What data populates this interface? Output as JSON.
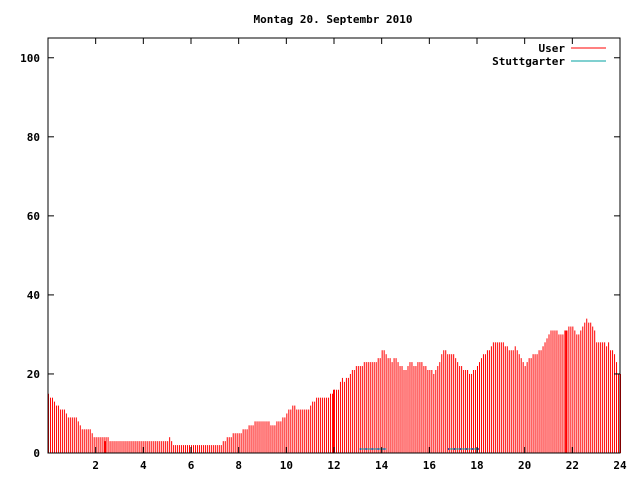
{
  "chart_data": {
    "type": "bar",
    "title": "Montag 20. Septembr 2010",
    "xlabel": "",
    "ylabel": "",
    "xlim": [
      0,
      24
    ],
    "ylim": [
      0,
      105
    ],
    "x_ticks": [
      "2",
      "4",
      "6",
      "8",
      "10",
      "12",
      "14",
      "16",
      "18",
      "20",
      "22",
      "24"
    ],
    "y_ticks": [
      "0",
      "20",
      "40",
      "60",
      "80",
      "100"
    ],
    "legend_position": "top-right",
    "grid": false,
    "bar_step_minutes": 5,
    "series": [
      {
        "name": "User",
        "color": "#ff0000",
        "keypoints": [
          [
            0.0,
            15
          ],
          [
            0.15,
            14
          ],
          [
            0.3,
            12
          ],
          [
            0.6,
            11
          ],
          [
            0.75,
            10
          ],
          [
            0.85,
            9
          ],
          [
            1.1,
            9
          ],
          [
            1.25,
            8
          ],
          [
            1.35,
            7
          ],
          [
            1.45,
            6
          ],
          [
            1.8,
            6
          ],
          [
            1.85,
            4
          ],
          [
            2.5,
            4
          ],
          [
            2.55,
            3
          ],
          [
            5.0,
            3
          ],
          [
            5.05,
            4
          ],
          [
            5.15,
            3
          ],
          [
            5.3,
            2
          ],
          [
            7.2,
            2
          ],
          [
            7.35,
            3
          ],
          [
            7.6,
            4
          ],
          [
            7.75,
            5
          ],
          [
            8.0,
            5
          ],
          [
            8.25,
            6
          ],
          [
            8.5,
            7
          ],
          [
            8.8,
            8
          ],
          [
            9.2,
            8
          ],
          [
            9.4,
            7
          ],
          [
            9.7,
            8
          ],
          [
            9.9,
            9
          ],
          [
            10.1,
            11
          ],
          [
            10.3,
            12
          ],
          [
            10.5,
            11
          ],
          [
            10.9,
            11
          ],
          [
            11.1,
            13
          ],
          [
            11.3,
            14
          ],
          [
            11.7,
            14
          ],
          [
            11.9,
            15
          ],
          [
            12.0,
            16
          ],
          [
            12.2,
            16
          ],
          [
            12.3,
            19
          ],
          [
            12.4,
            18
          ],
          [
            12.6,
            19
          ],
          [
            12.8,
            21
          ],
          [
            13.0,
            22
          ],
          [
            13.2,
            22
          ],
          [
            13.3,
            23
          ],
          [
            13.7,
            23
          ],
          [
            13.9,
            24
          ],
          [
            14.0,
            26
          ],
          [
            14.2,
            25
          ],
          [
            14.4,
            23
          ],
          [
            14.6,
            24
          ],
          [
            14.8,
            22
          ],
          [
            15.0,
            21
          ],
          [
            15.2,
            23
          ],
          [
            15.4,
            22
          ],
          [
            15.6,
            23
          ],
          [
            15.8,
            22
          ],
          [
            16.0,
            21
          ],
          [
            16.2,
            20
          ],
          [
            16.4,
            23
          ],
          [
            16.6,
            26
          ],
          [
            16.8,
            25
          ],
          [
            17.0,
            25
          ],
          [
            17.1,
            24
          ],
          [
            17.2,
            22
          ],
          [
            17.5,
            21
          ],
          [
            17.7,
            20
          ],
          [
            17.9,
            21
          ],
          [
            18.1,
            23
          ],
          [
            18.3,
            25
          ],
          [
            18.5,
            26
          ],
          [
            18.7,
            28
          ],
          [
            19.0,
            28
          ],
          [
            19.2,
            27
          ],
          [
            19.4,
            26
          ],
          [
            19.6,
            27
          ],
          [
            19.8,
            24
          ],
          [
            19.9,
            23
          ],
          [
            20.0,
            22
          ],
          [
            20.2,
            24
          ],
          [
            20.4,
            25
          ],
          [
            20.6,
            26
          ],
          [
            20.8,
            27
          ],
          [
            20.9,
            29
          ],
          [
            21.1,
            31
          ],
          [
            21.3,
            31
          ],
          [
            21.5,
            30
          ],
          [
            21.7,
            31
          ],
          [
            21.9,
            32
          ],
          [
            22.0,
            32
          ],
          [
            22.1,
            31
          ],
          [
            22.2,
            30
          ],
          [
            22.4,
            32
          ],
          [
            22.55,
            34
          ],
          [
            22.75,
            33
          ],
          [
            22.9,
            31
          ],
          [
            23.0,
            28
          ],
          [
            23.3,
            28
          ],
          [
            23.4,
            27
          ],
          [
            23.5,
            28
          ],
          [
            23.6,
            26
          ],
          [
            23.75,
            25
          ],
          [
            23.85,
            23
          ],
          [
            23.9,
            20
          ],
          [
            24.0,
            20
          ]
        ],
        "spikes": [
          [
            2.4,
            3
          ],
          [
            12.0,
            16
          ],
          [
            21.75,
            31
          ]
        ]
      },
      {
        "name": "Stuttgarter",
        "color": "#00a0a0",
        "segments": [
          [
            13.1,
            14.2,
            1
          ],
          [
            16.8,
            18.1,
            1
          ]
        ]
      }
    ]
  }
}
